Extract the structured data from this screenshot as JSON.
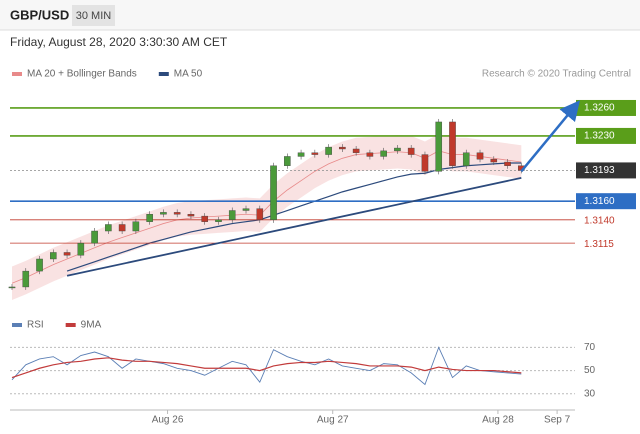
{
  "header": {
    "symbol": "GBP/USD",
    "timeframe": "30 MIN",
    "timestamp": "Friday, August 28, 2020 3:30:30 AM CET"
  },
  "chart_data": [
    {
      "type": "candlestick",
      "attribution": "Research © 2020 Trading Central",
      "x": [
        0,
        1,
        2,
        3,
        4,
        5,
        6,
        7,
        8,
        9,
        10,
        11,
        12,
        13,
        14,
        15,
        16,
        17,
        18,
        19,
        20,
        21,
        22,
        23,
        24,
        25,
        26,
        27,
        28,
        29,
        30,
        31,
        32,
        33,
        34,
        35,
        36,
        37
      ],
      "closes": [
        1.3068,
        1.3085,
        1.3098,
        1.3105,
        1.3102,
        1.3115,
        1.3128,
        1.3135,
        1.3128,
        1.3138,
        1.3146,
        1.3148,
        1.3146,
        1.3144,
        1.3138,
        1.314,
        1.315,
        1.3152,
        1.314,
        1.3198,
        1.3208,
        1.3212,
        1.321,
        1.3218,
        1.3216,
        1.3212,
        1.3208,
        1.3214,
        1.3217,
        1.321,
        1.3192,
        1.3245,
        1.3198,
        1.3212,
        1.3205,
        1.3202,
        1.3198,
        1.3193
      ],
      "up_color": "#4a9a3a",
      "down_color": "#c0392b",
      "series": [
        {
          "name": "MA 20 + Bollinger Bands",
          "color": "#e88a8a",
          "values": [
            1.3072,
            1.3078,
            1.3085,
            1.3092,
            1.3098,
            1.3104,
            1.311,
            1.3116,
            1.3121,
            1.3126,
            1.3131,
            1.3136,
            1.314,
            1.3142,
            1.3143,
            1.3144,
            1.3145,
            1.3146,
            1.3145,
            1.316,
            1.3172,
            1.3182,
            1.3192,
            1.32,
            1.3206,
            1.321,
            1.3211,
            1.3212,
            1.3213,
            1.3212,
            1.3206,
            1.3214,
            1.321,
            1.321,
            1.3208,
            1.3206,
            1.3204,
            1.3202
          ],
          "upper": [
            1.309,
            1.3096,
            1.3103,
            1.311,
            1.3116,
            1.3122,
            1.3128,
            1.3134,
            1.3139,
            1.3144,
            1.3149,
            1.3154,
            1.3158,
            1.316,
            1.3161,
            1.3162,
            1.3163,
            1.3164,
            1.3163,
            1.3178,
            1.319,
            1.32,
            1.321,
            1.3218,
            1.3224,
            1.3228,
            1.3229,
            1.323,
            1.3231,
            1.323,
            1.3224,
            1.3232,
            1.3228,
            1.3228,
            1.3226,
            1.3224,
            1.3222,
            1.322
          ],
          "lower": [
            1.3054,
            1.306,
            1.3067,
            1.3074,
            1.308,
            1.3086,
            1.3092,
            1.3098,
            1.3103,
            1.3108,
            1.3113,
            1.3118,
            1.3122,
            1.3124,
            1.3125,
            1.3126,
            1.3127,
            1.3128,
            1.3127,
            1.3142,
            1.3154,
            1.3164,
            1.3174,
            1.3182,
            1.3188,
            1.3192,
            1.3193,
            1.3194,
            1.3195,
            1.3194,
            1.3188,
            1.3196,
            1.3192,
            1.3192,
            1.319,
            1.3188,
            1.3186,
            1.3184
          ]
        },
        {
          "name": "MA 50",
          "color": "#2c4a7c",
          "values": [
            null,
            null,
            null,
            null,
            1.3085,
            1.309,
            1.3095,
            1.31,
            1.3105,
            1.311,
            1.3115,
            1.3119,
            1.3123,
            1.3127,
            1.313,
            1.3133,
            1.3136,
            1.3138,
            1.314,
            1.3145,
            1.315,
            1.3155,
            1.316,
            1.3165,
            1.317,
            1.3174,
            1.3178,
            1.3182,
            1.3186,
            1.3189,
            1.319,
            1.3194,
            1.3196,
            1.3198,
            1.3199,
            1.32,
            1.3201,
            1.3201
          ]
        }
      ],
      "levels": [
        {
          "value": 1.326,
          "label": "1.3260",
          "color": "#5a9e1a",
          "box": true,
          "dotted": false
        },
        {
          "value": 1.323,
          "label": "1.3230",
          "color": "#5a9e1a",
          "box": true,
          "dotted": false
        },
        {
          "value": 1.3193,
          "label": "1.3193",
          "color": "#333333",
          "box": true,
          "dotted": true
        },
        {
          "value": 1.316,
          "label": "1.3160",
          "color": "#2e6ec4",
          "box": true,
          "dotted": false
        },
        {
          "value": 1.314,
          "label": "1.3140",
          "color": "#c0392b",
          "box": false,
          "dotted": false
        },
        {
          "value": 1.3115,
          "label": "1.3115",
          "color": "#c0392b",
          "box": false,
          "dotted": false
        }
      ],
      "trendline": {
        "x": [
          4,
          37
        ],
        "values": [
          1.308,
          1.3185
        ],
        "color": "#2c4a7c"
      },
      "forecast_arrow": {
        "x": [
          37,
          40.8
        ],
        "values": [
          1.3192,
          1.326
        ],
        "color": "#2e6ec4"
      },
      "xlim": [
        0,
        40.9
      ],
      "ylim": [
        1.3054,
        1.329
      ]
    },
    {
      "type": "line",
      "x": [
        0,
        1,
        2,
        3,
        4,
        5,
        6,
        7,
        8,
        9,
        10,
        11,
        12,
        13,
        14,
        15,
        16,
        17,
        18,
        19,
        20,
        21,
        22,
        23,
        24,
        25,
        26,
        27,
        28,
        29,
        30,
        31,
        32,
        33,
        34,
        35,
        36,
        37
      ],
      "series": [
        {
          "name": "RSI",
          "color": "#5b7fb5",
          "values": [
            42,
            55,
            60,
            62,
            55,
            63,
            66,
            62,
            52,
            60,
            58,
            56,
            52,
            50,
            46,
            52,
            58,
            55,
            40,
            68,
            62,
            58,
            55,
            60,
            54,
            52,
            50,
            56,
            55,
            48,
            38,
            70,
            44,
            54,
            50,
            49,
            48,
            47
          ]
        },
        {
          "name": "9MA",
          "color": "#c23b3b",
          "values": [
            44,
            48,
            52,
            55,
            57,
            58,
            60,
            61,
            59,
            58,
            58,
            57,
            56,
            54,
            52,
            52,
            52,
            52,
            50,
            54,
            56,
            57,
            57,
            58,
            57,
            56,
            54,
            54,
            54,
            53,
            50,
            53,
            51,
            50,
            50,
            50,
            49,
            48
          ]
        }
      ],
      "xlim": [
        0,
        40.9
      ],
      "ylim": [
        16,
        85
      ],
      "yticks": [
        70,
        50,
        30
      ],
      "grid": true,
      "xticks": [
        {
          "value": 11.3,
          "label": "Aug 26"
        },
        {
          "value": 23.3,
          "label": "Aug 27"
        },
        {
          "value": 35.3,
          "label": "Aug 28"
        },
        {
          "value": 39.6,
          "label": "Sep 7"
        }
      ]
    }
  ]
}
